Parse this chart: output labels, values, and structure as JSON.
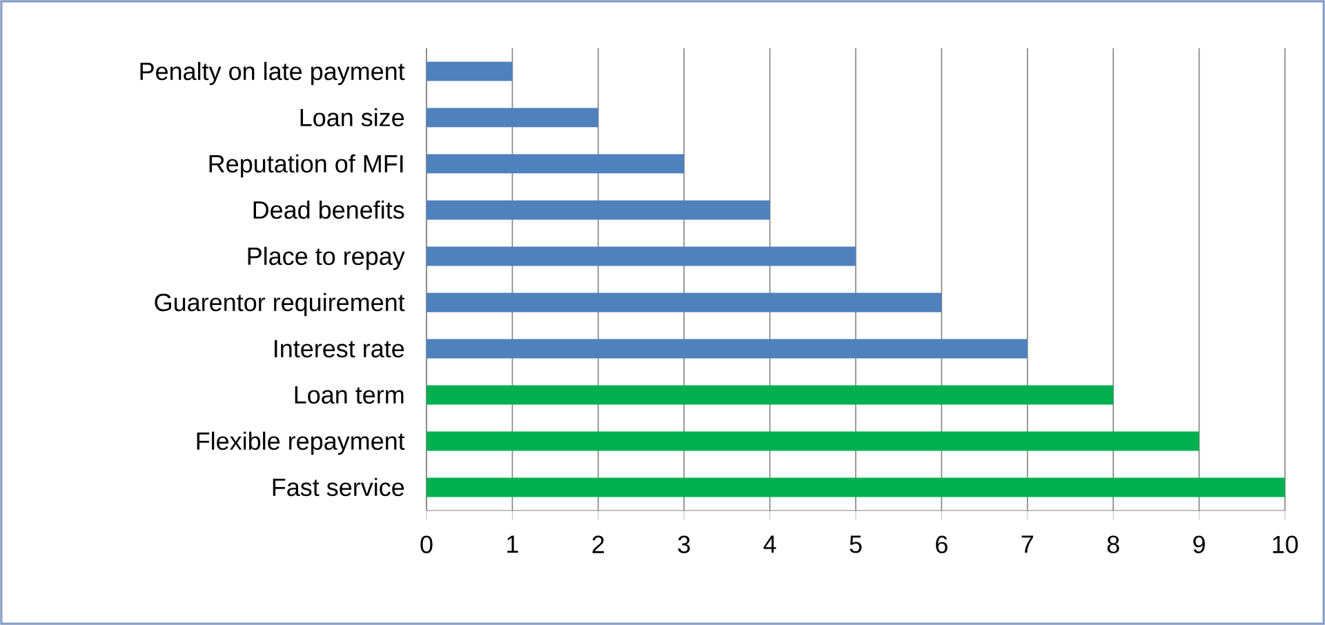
{
  "chart_data": {
    "type": "bar",
    "orientation": "horizontal",
    "categories": [
      "Penalty on late payment",
      "Loan size",
      "Reputation of MFI",
      "Dead benefits",
      "Place to repay",
      "Guarentor requirement",
      "Interest rate",
      "Loan term",
      "Flexible repayment",
      "Fast service"
    ],
    "values": [
      1,
      2,
      3,
      4,
      5,
      6,
      7,
      8,
      9,
      10
    ],
    "colors": [
      "#4f81bd",
      "#4f81bd",
      "#4f81bd",
      "#4f81bd",
      "#4f81bd",
      "#4f81bd",
      "#4f81bd",
      "#00b050",
      "#00b050",
      "#00b050"
    ],
    "xlim": [
      0,
      10
    ],
    "xticks": [
      0,
      1,
      2,
      3,
      4,
      5,
      6,
      7,
      8,
      9,
      10
    ],
    "grid": "x"
  }
}
